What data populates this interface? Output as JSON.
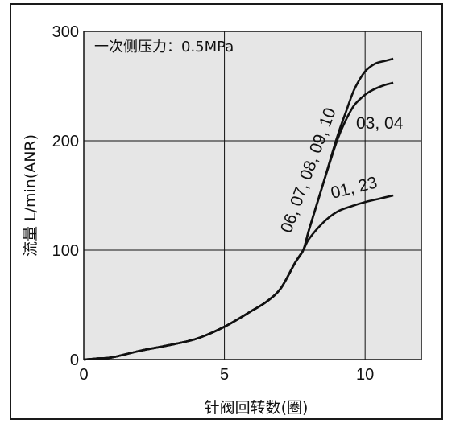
{
  "chart_data": {
    "type": "line",
    "annotation": "一次侧压力：0.5MPa",
    "xlabel": "针阀回转数(圈)",
    "ylabel": "流量 L/min(ANR)",
    "xlim": [
      0,
      12
    ],
    "ylim": [
      0,
      300
    ],
    "xticks": [
      0,
      5,
      10
    ],
    "yticks": [
      0,
      100,
      200,
      300
    ],
    "grid": true,
    "colors": {
      "background": "#e6e6e6",
      "line": "#111111",
      "grid": "#111111"
    },
    "series": [
      {
        "name": "06, 07, 08, 09, 10",
        "x": [
          0,
          0.5,
          1,
          2,
          3,
          4,
          5,
          6,
          6.5,
          7,
          7.5,
          7.8,
          8,
          8.5,
          9,
          9.3,
          9.6,
          9.9,
          10.1,
          10.4,
          10.7,
          11
        ],
        "y": [
          0,
          1,
          2,
          8,
          13,
          19,
          30,
          45,
          53,
          65,
          88,
          100,
          118,
          160,
          203,
          225,
          246,
          260,
          266,
          271,
          273,
          275
        ]
      },
      {
        "name": "03, 04",
        "x": [
          0,
          0.5,
          1,
          2,
          3,
          4,
          5,
          6,
          6.5,
          7,
          7.5,
          7.8,
          8,
          8.5,
          9,
          9.3,
          9.6,
          9.9,
          10.1,
          10.4,
          10.7,
          11
        ],
        "y": [
          0,
          1,
          2,
          8,
          13,
          19,
          30,
          45,
          53,
          65,
          88,
          100,
          118,
          160,
          200,
          218,
          232,
          240,
          244,
          248,
          251,
          253
        ]
      },
      {
        "name": "01, 23",
        "x": [
          0,
          0.5,
          1,
          2,
          3,
          4,
          5,
          6,
          6.5,
          7,
          7.5,
          7.8,
          8,
          8.5,
          9,
          9.5,
          10,
          10.5,
          11
        ],
        "y": [
          0,
          1,
          2,
          8,
          13,
          19,
          30,
          45,
          53,
          65,
          88,
          100,
          110,
          125,
          135,
          140,
          144,
          147,
          150
        ]
      }
    ]
  }
}
